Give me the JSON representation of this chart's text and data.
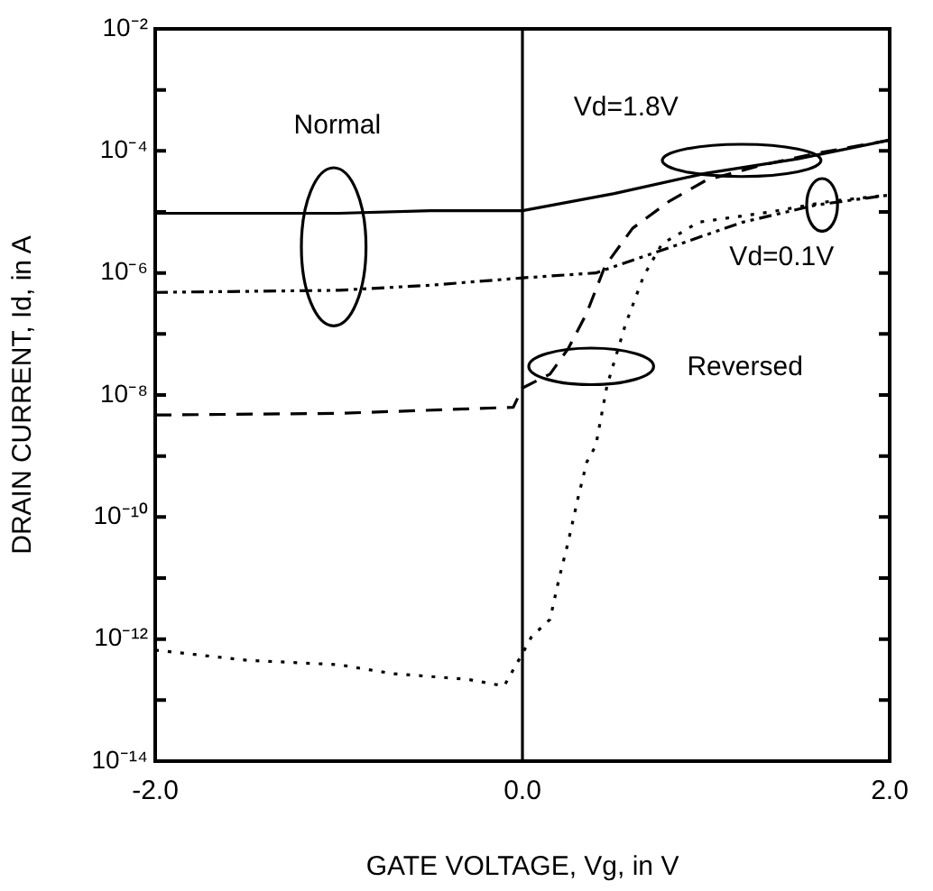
{
  "chart_data": {
    "type": "line",
    "xlabel": "GATE VOLTAGE, Vg, in V",
    "ylabel": "DRAIN CURRENT, Id, in A",
    "log": "y",
    "xlim": [
      -2,
      2
    ],
    "xticks": [
      {
        "value": -2,
        "label": "-2.0"
      },
      {
        "value": 0,
        "label": "0.0"
      },
      {
        "value": 2,
        "label": "2.0"
      }
    ],
    "ylim": [
      1e-14,
      0.01
    ],
    "yticks": [
      {
        "value": 1e-14,
        "label": "10⁻¹⁴"
      },
      {
        "value": 1e-13,
        "label": null
      },
      {
        "value": 1e-12,
        "label": "10⁻¹²"
      },
      {
        "value": 1e-11,
        "label": null
      },
      {
        "value": 1e-10,
        "label": "10⁻¹⁰"
      },
      {
        "value": 1e-09,
        "label": null
      },
      {
        "value": 1e-08,
        "label": "10⁻⁸"
      },
      {
        "value": 1e-07,
        "label": null
      },
      {
        "value": 1e-06,
        "label": "10⁻⁶"
      },
      {
        "value": 1e-05,
        "label": null
      },
      {
        "value": 0.0001,
        "label": "10⁻⁴"
      },
      {
        "value": 0.001,
        "label": null
      },
      {
        "value": 0.01,
        "label": "10⁻²"
      }
    ],
    "grid": false,
    "legend": false,
    "marker": "none",
    "series": [
      {
        "color": "#000000",
        "line_style": "solid",
        "x": [
          -2,
          -1,
          -0.5,
          0,
          0.5,
          1,
          1.5,
          2
        ],
        "values": [
          9.5e-06,
          9.5e-06,
          1.05e-05,
          1.05e-05,
          2e-05,
          4.3e-05,
          7.4e-05,
          0.00015
        ]
      },
      {
        "color": "#000000",
        "line_style": "dashdot",
        "x": [
          -2,
          -1,
          -0.5,
          0,
          0.4,
          0.8,
          1.2,
          1.6,
          2.0
        ],
        "values": [
          4.8e-07,
          5.2e-07,
          6.3e-07,
          8.3e-07,
          1e-06,
          2.6e-06,
          6.8e-06,
          1.3e-05,
          1.9e-05
        ]
      },
      {
        "color": "#000000",
        "line_style": "dashed",
        "x": [
          -2,
          -1,
          -0.05,
          0,
          0.15,
          0.25,
          0.35,
          0.45,
          0.6,
          0.8,
          1.0,
          1.3,
          1.6,
          2.0
        ],
        "values": [
          4.7e-09,
          5e-09,
          6.3e-09,
          1.3e-08,
          2.2e-08,
          5.8e-08,
          2.2e-07,
          1.3e-06,
          5.4e-06,
          1.5e-05,
          3.3e-05,
          5.8e-05,
          9.1e-05,
          0.00015
        ]
      },
      {
        "color": "#000000",
        "line_style": "dotted",
        "x": [
          -2,
          -1.5,
          -1,
          -0.7,
          -0.3,
          -0.1,
          0,
          0.05,
          0.15,
          0.2,
          0.25,
          0.3,
          0.35,
          0.4,
          0.46,
          0.56,
          0.66,
          0.76,
          0.96,
          1.35,
          1.68,
          2.0
        ],
        "values": [
          6.6e-13,
          4.5e-13,
          3.8e-13,
          2.7e-13,
          2.2e-13,
          1.7e-13,
          5.8e-13,
          1.1e-12,
          2.1e-12,
          1e-11,
          4e-11,
          1.9e-10,
          7.9e-10,
          1.5e-09,
          1.4e-08,
          1.4e-07,
          8.9e-07,
          3e-06,
          6.8e-06,
          1e-05,
          1.5e-05,
          1.9e-05
        ]
      }
    ],
    "ref_lines": [
      {
        "axis": "x",
        "value": 0,
        "color": "#000000"
      }
    ],
    "annotations": [
      "Normal",
      "Vd=1.8V",
      "Vd=0.1V",
      "Reversed"
    ]
  }
}
